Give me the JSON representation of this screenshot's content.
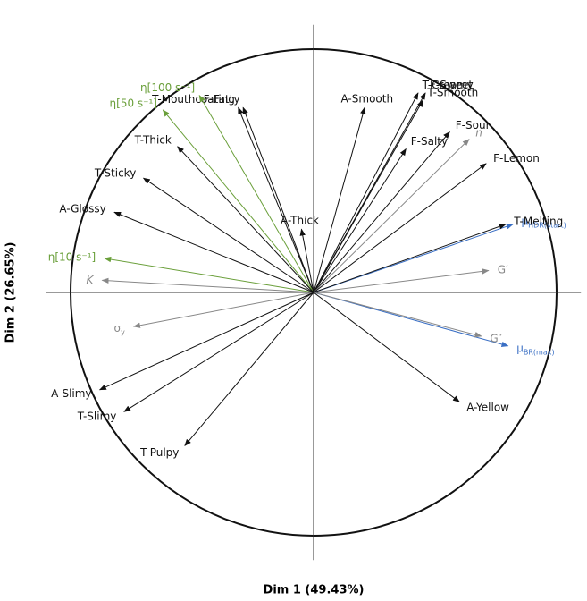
{
  "chart_data": {
    "type": "correlation-circle",
    "x_label": "Dim 1 (49.43%)",
    "y_label": "Dim 2 (26.65%)",
    "xlim": [
      -1.1,
      1.1
    ],
    "ylim": [
      -1.1,
      1.1
    ],
    "series": [
      {
        "name": "T-Mouthcoating",
        "color": "#111111",
        "x": -0.31,
        "y": 0.76
      },
      {
        "name": "F-Fatty",
        "color": "#111111",
        "x": -0.29,
        "y": 0.76
      },
      {
        "name": "η[100 s⁻¹]",
        "color": "#6a9f3a",
        "x": -0.47,
        "y": 0.81
      },
      {
        "name": "η[50 s⁻¹]",
        "color": "#6a9f3a",
        "x": -0.62,
        "y": 0.75
      },
      {
        "name": "T-Thick",
        "color": "#111111",
        "x": -0.56,
        "y": 0.6
      },
      {
        "name": "T-Sticky",
        "color": "#111111",
        "x": -0.7,
        "y": 0.47
      },
      {
        "name": "A-Glossy",
        "color": "#111111",
        "x": -0.82,
        "y": 0.33
      },
      {
        "name": "η[10 s⁻¹]",
        "color": "#6a9f3a",
        "x": -0.86,
        "y": 0.14
      },
      {
        "name": "K",
        "color": "#888888",
        "x": -0.87,
        "y": 0.05,
        "italic": true
      },
      {
        "name": "σ",
        "subscript": "y",
        "color": "#888888",
        "x": -0.74,
        "y": -0.14
      },
      {
        "name": "A-Slimy",
        "color": "#111111",
        "x": -0.88,
        "y": -0.4
      },
      {
        "name": "T-Slimy",
        "color": "#111111",
        "x": -0.78,
        "y": -0.49
      },
      {
        "name": "T-Pulpy",
        "color": "#111111",
        "x": -0.53,
        "y": -0.63
      },
      {
        "name": "A-Thick",
        "color": "#111111",
        "x": -0.05,
        "y": 0.26
      },
      {
        "name": "A-Smooth",
        "color": "#111111",
        "x": 0.21,
        "y": 0.76
      },
      {
        "name": "T-Creamy",
        "color": "#111111",
        "x": 0.43,
        "y": 0.82
      },
      {
        "name": "F-Sweet",
        "color": "#111111",
        "x": 0.46,
        "y": 0.82
      },
      {
        "name": "T-Smooth",
        "color": "#111111",
        "x": 0.45,
        "y": 0.79
      },
      {
        "name": "F-Salty",
        "color": "#111111",
        "x": 0.38,
        "y": 0.59
      },
      {
        "name": "F-Sour",
        "color": "#111111",
        "x": 0.56,
        "y": 0.66
      },
      {
        "name": "n",
        "color": "#888888",
        "x": 0.64,
        "y": 0.63,
        "italic": true
      },
      {
        "name": "F-Lemon",
        "color": "#111111",
        "x": 0.71,
        "y": 0.53
      },
      {
        "name": "μ",
        "subscript": "HDR(start)",
        "color": "#3a6fc4",
        "x": 0.82,
        "y": 0.28
      },
      {
        "name": "T-Melting",
        "color": "#111111",
        "x": 0.79,
        "y": 0.28
      },
      {
        "name": "G′",
        "color": "#888888",
        "x": 0.72,
        "y": 0.09
      },
      {
        "name": "μ",
        "subscript": "BR(max)",
        "color": "#3a6fc4",
        "x": 0.8,
        "y": -0.22
      },
      {
        "name": "G″",
        "color": "#888888",
        "x": 0.69,
        "y": -0.18
      },
      {
        "name": "A-Yellow",
        "color": "#111111",
        "x": 0.6,
        "y": -0.45
      }
    ]
  }
}
